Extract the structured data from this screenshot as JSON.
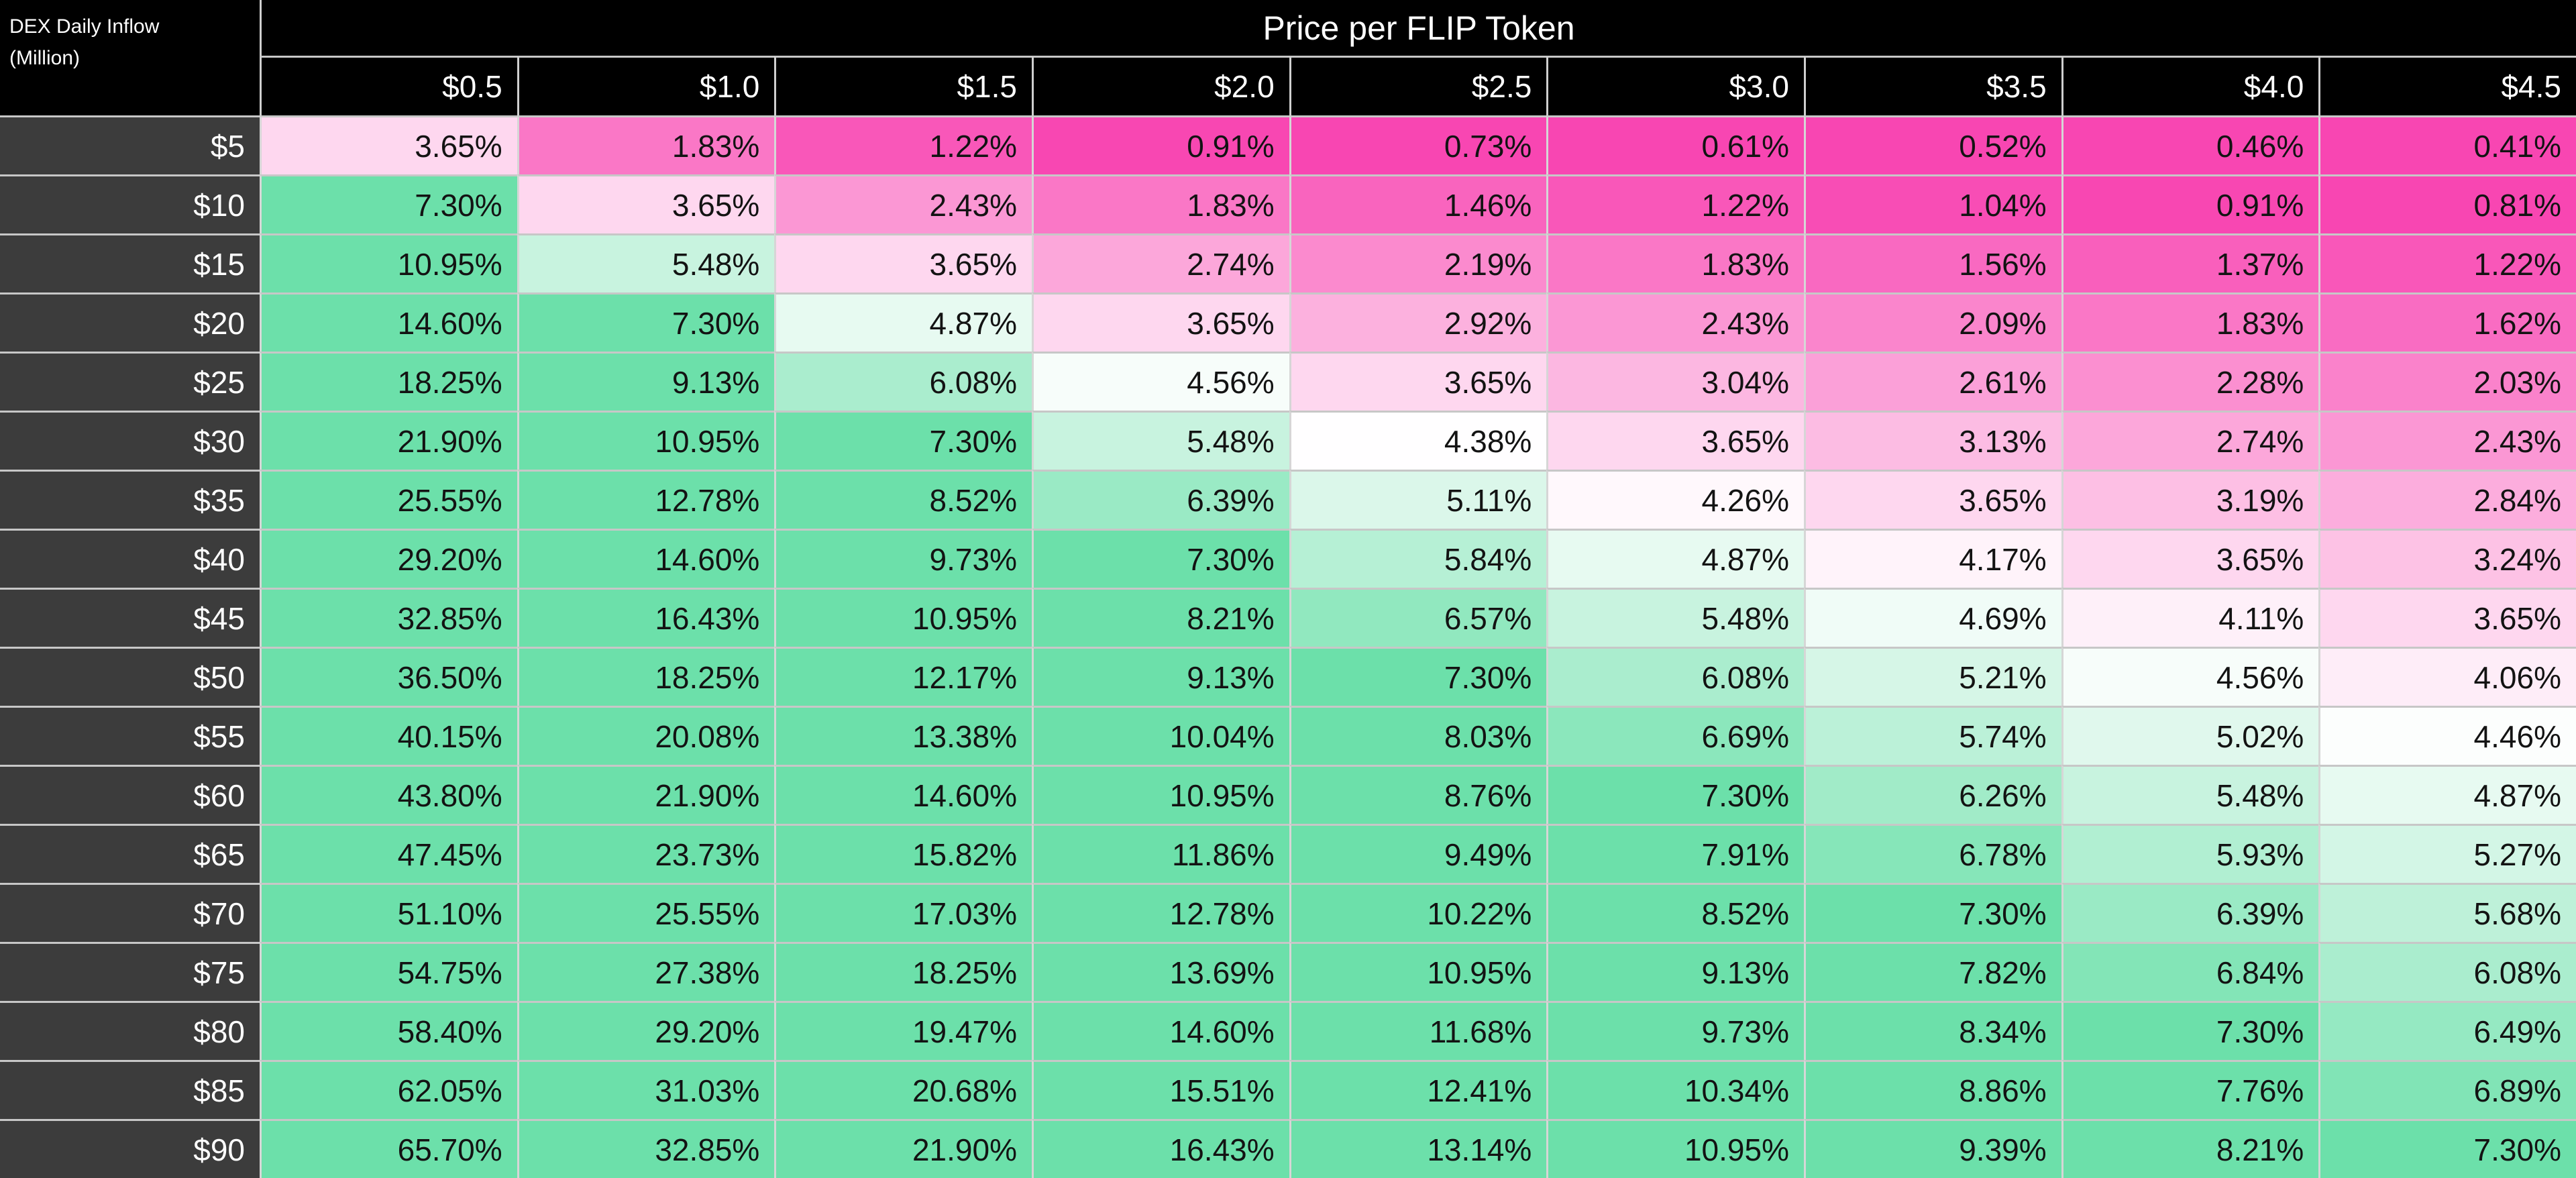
{
  "chart_data": {
    "type": "heatmap",
    "title": "Price per FLIP Token",
    "row_axis_label_line1": "DEX Daily Inflow",
    "row_axis_label_line2": "(Million)",
    "columns": [
      "$0.5",
      "$1.0",
      "$1.5",
      "$2.0",
      "$2.5",
      "$3.0",
      "$3.5",
      "$4.0",
      "$4.5"
    ],
    "rows": [
      "$5",
      "$10",
      "$15",
      "$20",
      "$25",
      "$30",
      "$35",
      "$40",
      "$45",
      "$50",
      "$55",
      "$60",
      "$65",
      "$70",
      "$75",
      "$80",
      "$85",
      "$90"
    ],
    "values": [
      [
        3.65,
        1.83,
        1.22,
        0.91,
        0.73,
        0.61,
        0.52,
        0.46,
        0.41
      ],
      [
        7.3,
        3.65,
        2.43,
        1.83,
        1.46,
        1.22,
        1.04,
        0.91,
        0.81
      ],
      [
        10.95,
        5.48,
        3.65,
        2.74,
        2.19,
        1.83,
        1.56,
        1.37,
        1.22
      ],
      [
        14.6,
        7.3,
        4.87,
        3.65,
        2.92,
        2.43,
        2.09,
        1.83,
        1.62
      ],
      [
        18.25,
        9.13,
        6.08,
        4.56,
        3.65,
        3.04,
        2.61,
        2.28,
        2.03
      ],
      [
        21.9,
        10.95,
        7.3,
        5.48,
        4.38,
        3.65,
        3.13,
        2.74,
        2.43
      ],
      [
        25.55,
        12.78,
        8.52,
        6.39,
        5.11,
        4.26,
        3.65,
        3.19,
        2.84
      ],
      [
        29.2,
        14.6,
        9.73,
        7.3,
        5.84,
        4.87,
        4.17,
        3.65,
        3.24
      ],
      [
        32.85,
        16.43,
        10.95,
        8.21,
        6.57,
        5.48,
        4.69,
        4.11,
        3.65
      ],
      [
        36.5,
        18.25,
        12.17,
        9.13,
        7.3,
        6.08,
        5.21,
        4.56,
        4.06
      ],
      [
        40.15,
        20.08,
        13.38,
        10.04,
        8.03,
        6.69,
        5.74,
        5.02,
        4.46
      ],
      [
        43.8,
        21.9,
        14.6,
        10.95,
        8.76,
        7.3,
        6.26,
        5.48,
        4.87
      ],
      [
        47.45,
        23.73,
        15.82,
        11.86,
        9.49,
        7.91,
        6.78,
        5.93,
        5.27
      ],
      [
        51.1,
        25.55,
        17.03,
        12.78,
        10.22,
        8.52,
        7.3,
        6.39,
        5.68
      ],
      [
        54.75,
        27.38,
        18.25,
        13.69,
        10.95,
        9.13,
        7.82,
        6.84,
        6.08
      ],
      [
        58.4,
        29.2,
        19.47,
        14.6,
        11.68,
        9.73,
        8.34,
        7.3,
        6.49
      ],
      [
        62.05,
        31.03,
        20.68,
        15.51,
        12.41,
        10.34,
        8.86,
        7.76,
        6.89
      ],
      [
        65.7,
        32.85,
        21.9,
        16.43,
        13.14,
        10.95,
        9.39,
        8.21,
        7.3
      ]
    ],
    "value_suffix": "%",
    "value_decimals": 2,
    "colorscale": {
      "low_color": "#f846b2",
      "mid_color": "#ffffff",
      "high_color": "#6ce0aa",
      "mid_value": 4.4,
      "low_saturation_value": 0.9,
      "high_saturation_value": 7.3
    },
    "layout": {
      "legend": "none",
      "grid": "on"
    },
    "styles": {
      "header_bg": "#000000",
      "header_text": "#ffffff",
      "row_header_bg": "#3c3c3c",
      "cell_text": "#131313",
      "h_gridline": "#c7c7c7",
      "v_gridline": "#d6d6d6"
    }
  }
}
